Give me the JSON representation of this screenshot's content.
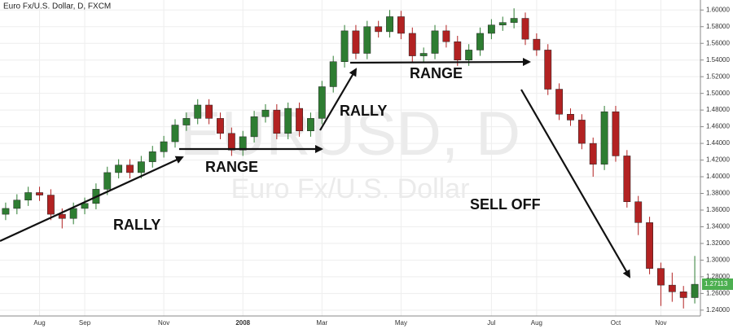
{
  "chart_data": {
    "type": "candlestick",
    "title": "Euro Fx/U.S. Dollar, D, FXCM",
    "watermark": [
      "EURUSD, D",
      "Euro Fx/U.S. Dollar"
    ],
    "annotations": [
      "RALLY",
      "RANGE",
      "RALLY",
      "RANGE",
      "SELL OFF"
    ],
    "categories": [
      null,
      null,
      null,
      "Aug",
      null,
      null,
      null,
      "Sep",
      null,
      null,
      null,
      null,
      null,
      null,
      "Nov",
      null,
      null,
      null,
      null,
      null,
      null,
      "2008",
      null,
      null,
      null,
      null,
      null,
      null,
      "Mar",
      null,
      null,
      null,
      null,
      null,
      null,
      "May",
      null,
      null,
      null,
      null,
      null,
      null,
      null,
      "Jul",
      null,
      null,
      null,
      "Aug",
      null,
      null,
      null,
      null,
      null,
      null,
      "Oct",
      null,
      null,
      null,
      "Nov",
      null,
      null,
      null
    ],
    "open": [
      1.355,
      1.362,
      1.372,
      1.381,
      1.378,
      1.355,
      1.35,
      1.362,
      1.368,
      1.385,
      1.405,
      1.414,
      1.405,
      1.418,
      1.43,
      1.442,
      1.462,
      1.47,
      1.486,
      1.47,
      1.452,
      1.432,
      1.448,
      1.472,
      1.48,
      1.452,
      1.482,
      1.455,
      1.47,
      1.508,
      1.538,
      1.575,
      1.548,
      1.58,
      1.574,
      1.592,
      1.572,
      1.545,
      1.548,
      1.575,
      1.562,
      1.54,
      1.552,
      1.572,
      1.582,
      1.585,
      1.59,
      1.565,
      1.552,
      1.505,
      1.475,
      1.468,
      1.44,
      1.415,
      1.478,
      1.425,
      1.37,
      1.345,
      1.29,
      1.27,
      1.262,
      1.255
    ],
    "high": [
      1.369,
      1.379,
      1.388,
      1.388,
      1.385,
      1.362,
      1.369,
      1.375,
      1.392,
      1.412,
      1.421,
      1.421,
      1.425,
      1.437,
      1.449,
      1.469,
      1.477,
      1.493,
      1.493,
      1.477,
      1.459,
      1.455,
      1.479,
      1.487,
      1.487,
      1.489,
      1.489,
      1.477,
      1.515,
      1.545,
      1.582,
      1.582,
      1.587,
      1.587,
      1.6,
      1.599,
      1.579,
      1.555,
      1.582,
      1.582,
      1.569,
      1.559,
      1.579,
      1.589,
      1.592,
      1.602,
      1.597,
      1.572,
      1.559,
      1.512,
      1.482,
      1.475,
      1.447,
      1.485,
      1.485,
      1.432,
      1.377,
      1.352,
      1.297,
      1.285,
      1.269,
      1.305
    ],
    "low": [
      1.348,
      1.355,
      1.365,
      1.371,
      1.348,
      1.338,
      1.343,
      1.355,
      1.361,
      1.378,
      1.398,
      1.398,
      1.398,
      1.411,
      1.423,
      1.435,
      1.455,
      1.463,
      1.463,
      1.445,
      1.425,
      1.425,
      1.441,
      1.465,
      1.445,
      1.445,
      1.448,
      1.448,
      1.463,
      1.501,
      1.531,
      1.541,
      1.541,
      1.567,
      1.567,
      1.565,
      1.538,
      1.538,
      1.541,
      1.555,
      1.533,
      1.533,
      1.545,
      1.565,
      1.575,
      1.578,
      1.558,
      1.545,
      1.498,
      1.468,
      1.461,
      1.433,
      1.4,
      1.408,
      1.418,
      1.363,
      1.33,
      1.283,
      1.245,
      1.25,
      1.242,
      1.248
    ],
    "close": [
      1.362,
      1.372,
      1.381,
      1.378,
      1.355,
      1.35,
      1.362,
      1.368,
      1.385,
      1.405,
      1.414,
      1.405,
      1.418,
      1.43,
      1.442,
      1.462,
      1.47,
      1.486,
      1.47,
      1.452,
      1.432,
      1.448,
      1.472,
      1.48,
      1.452,
      1.482,
      1.455,
      1.47,
      1.508,
      1.538,
      1.575,
      1.548,
      1.58,
      1.574,
      1.592,
      1.572,
      1.545,
      1.548,
      1.575,
      1.562,
      1.54,
      1.552,
      1.572,
      1.582,
      1.585,
      1.59,
      1.565,
      1.552,
      1.505,
      1.475,
      1.468,
      1.44,
      1.415,
      1.478,
      1.425,
      1.37,
      1.345,
      1.29,
      1.27,
      1.262,
      1.255,
      1.271
    ],
    "up_color": "#2e7d32",
    "down_color": "#b22222",
    "last_price": 1.27113,
    "last_price_color": "#4caf50",
    "ylim": [
      1.233,
      1.612
    ],
    "yticks": [
      {
        "value": 1.24,
        "label": "1.24000"
      },
      {
        "value": 1.26,
        "label": "1.26000"
      },
      {
        "value": 1.28,
        "label": "1.28000"
      },
      {
        "value": 1.3,
        "label": "1.30000"
      },
      {
        "value": 1.32,
        "label": "1.32000"
      },
      {
        "value": 1.34,
        "label": "1.34000"
      },
      {
        "value": 1.36,
        "label": "1.36000"
      },
      {
        "value": 1.38,
        "label": "1.38000"
      },
      {
        "value": 1.4,
        "label": "1.40000"
      },
      {
        "value": 1.42,
        "label": "1.42000"
      },
      {
        "value": 1.44,
        "label": "1.44000"
      },
      {
        "value": 1.46,
        "label": "1.46000"
      },
      {
        "value": 1.48,
        "label": "1.48000"
      },
      {
        "value": 1.5,
        "label": "1.50000"
      },
      {
        "value": 1.52,
        "label": "1.52000"
      },
      {
        "value": 1.54,
        "label": "1.54000"
      },
      {
        "value": 1.56,
        "label": "1.56000"
      },
      {
        "value": 1.58,
        "label": "1.58000"
      },
      {
        "value": 1.6,
        "label": "1.60000"
      }
    ],
    "grid": true
  }
}
